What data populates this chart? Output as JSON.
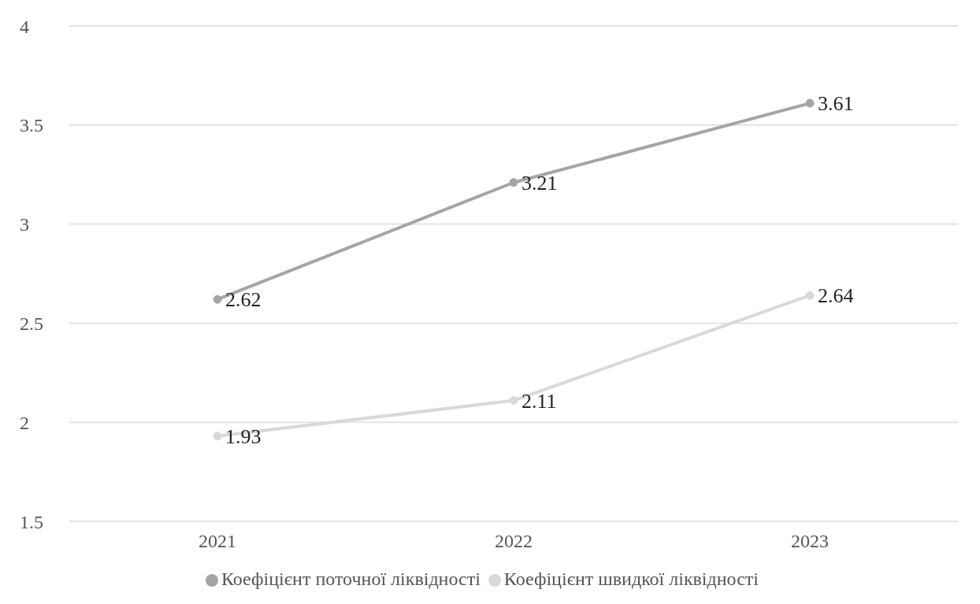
{
  "chart_data": {
    "type": "line",
    "categories": [
      "2021",
      "2022",
      "2023"
    ],
    "series": [
      {
        "name": "Коефіцієнт поточної ліквідності",
        "color": "#a5a5a5",
        "values": [
          2.62,
          3.21,
          3.61
        ]
      },
      {
        "name": "Коефіцієнт швидкої ліквідності",
        "color": "#d9d9d9",
        "values": [
          1.93,
          2.11,
          2.64
        ]
      }
    ],
    "ylim": [
      1.5,
      4
    ],
    "yticks": [
      1.5,
      2,
      2.5,
      3,
      3.5,
      4
    ],
    "grid": "y",
    "legend": "bottom",
    "marker": "circle",
    "line_style": "solid",
    "data_labels": true
  }
}
